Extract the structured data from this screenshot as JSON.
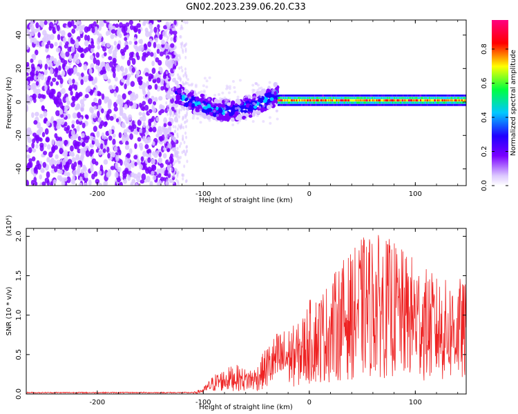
{
  "chart_data": [
    {
      "type": "heatmap",
      "title": "GN02.2023.239.06.20.C33",
      "xlabel": "Height of straight line (km)",
      "ylabel": "Frequency (Hz)",
      "xlim": [
        -267,
        148
      ],
      "ylim": [
        -50,
        49
      ],
      "xticks": [
        -200,
        -100,
        0,
        100
      ],
      "yticks": [
        -40,
        -20,
        0,
        20,
        40
      ],
      "colorbar": {
        "label": "Normalized spectral amplitude",
        "range": [
          0.0,
          0.97
        ],
        "ticks": [
          0.0,
          0.2,
          0.4,
          0.6,
          0.8
        ],
        "colors": [
          "#ffffff",
          "#dcc8ff",
          "#7a00ff",
          "#2000ff",
          "#00c8ff",
          "#00ff40",
          "#ffff00",
          "#ff0000",
          "#ff0080"
        ]
      },
      "regions": [
        {
          "x": [
            -267,
            -125
          ],
          "freq": [
            -50,
            49
          ],
          "amplitude": 0.15,
          "description_kind": "noise"
        },
        {
          "x": [
            -125,
            -30
          ],
          "freq_center": [
            5,
            -5
          ],
          "amplitude": 0.4,
          "description_kind": "signal"
        },
        {
          "x": [
            -30,
            148
          ],
          "freq_center": [
            1,
            1
          ],
          "amplitude": 0.8,
          "description_kind": "signal"
        }
      ]
    },
    {
      "type": "line",
      "title": "",
      "xlabel": "Height of straight line (km)",
      "ylabel": "SNR (10 * v/v)",
      "yscale_label": "(x10⁴)",
      "xlim": [
        -267,
        148
      ],
      "ylim": [
        0,
        2.1
      ],
      "xticks": [
        -200,
        -100,
        0,
        100
      ],
      "yticks": [
        0.0,
        0.5,
        1.0,
        1.5,
        2.0
      ],
      "series": [
        {
          "color": "#ee2222",
          "envelope": [
            {
              "x": -267,
              "y": 0.02
            },
            {
              "x": -110,
              "y": 0.02
            },
            {
              "x": -100,
              "y": 0.08
            },
            {
              "x": -90,
              "y": 0.25
            },
            {
              "x": -80,
              "y": 0.32
            },
            {
              "x": -70,
              "y": 0.38
            },
            {
              "x": -60,
              "y": 0.32
            },
            {
              "x": -50,
              "y": 0.35
            },
            {
              "x": -40,
              "y": 0.62
            },
            {
              "x": -30,
              "y": 0.8
            },
            {
              "x": -20,
              "y": 0.85
            },
            {
              "x": -10,
              "y": 0.9
            },
            {
              "x": 0,
              "y": 1.2
            },
            {
              "x": 10,
              "y": 1.3
            },
            {
              "x": 20,
              "y": 1.45
            },
            {
              "x": 30,
              "y": 1.7
            },
            {
              "x": 40,
              "y": 1.8
            },
            {
              "x": 50,
              "y": 2.0
            },
            {
              "x": 60,
              "y": 2.05
            },
            {
              "x": 70,
              "y": 2.0
            },
            {
              "x": 80,
              "y": 1.95
            },
            {
              "x": 90,
              "y": 1.8
            },
            {
              "x": 100,
              "y": 1.75
            },
            {
              "x": 110,
              "y": 1.6
            },
            {
              "x": 120,
              "y": 1.5
            },
            {
              "x": 130,
              "y": 1.45
            },
            {
              "x": 140,
              "y": 1.5
            },
            {
              "x": 148,
              "y": 1.4
            }
          ]
        }
      ]
    }
  ]
}
